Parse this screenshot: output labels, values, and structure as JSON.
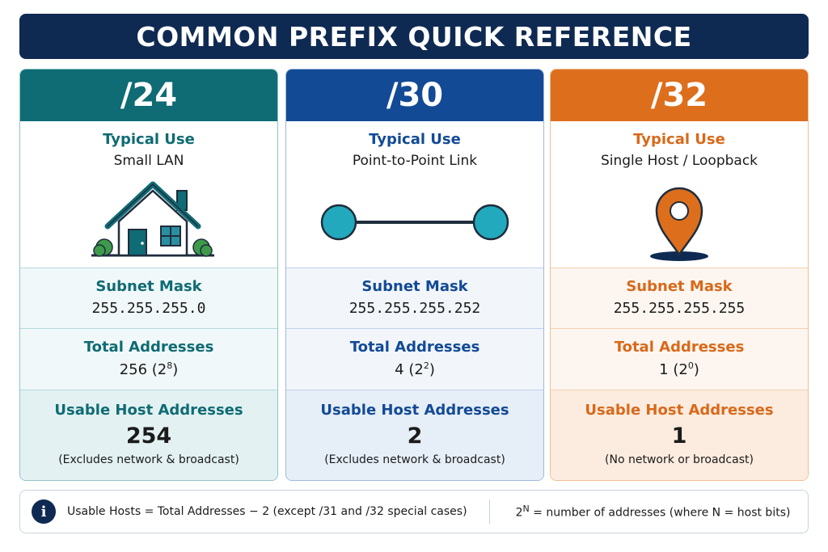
{
  "title": "COMMON PREFIX QUICK REFERENCE",
  "colors": {
    "navy": "#0f2a52",
    "teal": "#0f6b74",
    "blue": "#124a95",
    "orange": "#dd6e1c"
  },
  "cards": [
    {
      "prefix": "/24",
      "use_label": "Typical Use",
      "use_value": "Small LAN",
      "icon": "house-icon",
      "mask_label": "Subnet Mask",
      "mask_value": "255.255.255.0",
      "total_label": "Total Addresses",
      "total_value": "256 (2",
      "total_exp": "8",
      "usable_label": "Usable Host Addresses",
      "usable_value": "254",
      "usable_note": "(Excludes network & broadcast)"
    },
    {
      "prefix": "/30",
      "use_label": "Typical Use",
      "use_value": "Point-to-Point Link",
      "icon": "link-icon",
      "mask_label": "Subnet Mask",
      "mask_value": "255.255.255.252",
      "total_label": "Total Addresses",
      "total_value": "4 (2",
      "total_exp": "2",
      "usable_label": "Usable Host Addresses",
      "usable_value": "2",
      "usable_note": "(Excludes network & broadcast)"
    },
    {
      "prefix": "/32",
      "use_label": "Typical Use",
      "use_value": "Single Host / Loopback",
      "icon": "map-pin-icon",
      "mask_label": "Subnet Mask",
      "mask_value": "255.255.255.255",
      "total_label": "Total Addresses",
      "total_value": "1 (2",
      "total_exp": "0",
      "usable_label": "Usable Host Addresses",
      "usable_value": "1",
      "usable_note": "(No network or broadcast)"
    }
  ],
  "footer": {
    "info_icon": "i",
    "formula": "Usable Hosts = Total Addresses − 2  (except /31 and /32 special cases)",
    "power_base": "2",
    "power_exp": "N",
    "power_text": " = number of addresses (where N = host bits)"
  }
}
